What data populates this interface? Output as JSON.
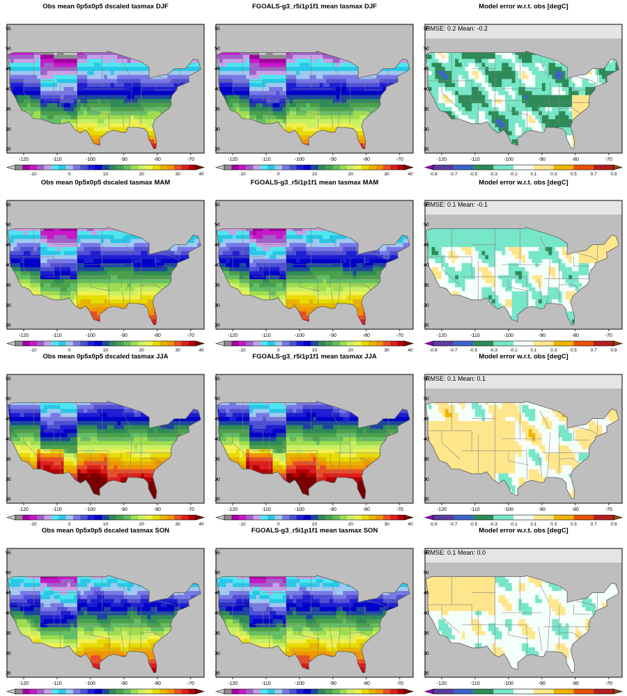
{
  "rows": [
    {
      "season": "DJF",
      "obs_title": "Obs mean 0p5x0p5 dscaled tasmax DJF",
      "model_title": "FGOALS-g3_r5i1p1f1 mean tasmax DJF",
      "err_title": "Model error w.r.t. obs [degC]",
      "err_stats": "RMSE: 0.2  Mean: -0.2"
    },
    {
      "season": "MAM",
      "obs_title": "Obs mean 0p5x0p5 dscaled tasmax MAM",
      "model_title": "FGOALS-g3_r5i1p1f1 mean tasmax MAM",
      "err_title": "Model error w.r.t. obs [degC]",
      "err_stats": "RMSE: 0.1  Mean: -0.1"
    },
    {
      "season": "JJA",
      "obs_title": "Obs mean 0p5x0p5 dscaled tasmax JJA",
      "model_title": "FGOALS-g3_r5i1p1f1 mean tasmax JJA",
      "err_title": "Model error w.r.t. obs [degC]",
      "err_stats": "RMSE: 0.1  Mean: 0.1"
    },
    {
      "season": "SON",
      "obs_title": "Obs mean 0p5x0p5 dscaled tasmax SON",
      "model_title": "FGOALS-g3_r5i1p1f1 mean tasmax SON",
      "err_title": "Model error w.r.t. obs [degC]",
      "err_stats": "RMSE: 0.1  Mean: 0.0"
    }
  ],
  "axes": {
    "lon_ticks": [
      "-120",
      "-110",
      "-100",
      "-90",
      "-80",
      "-70"
    ],
    "lat_ticks": [
      "55",
      "50",
      "45",
      "40",
      "35",
      "30",
      "25"
    ]
  },
  "temp_colorbar": {
    "labels": [
      "-10",
      "0",
      "10",
      "20",
      "30",
      "40"
    ],
    "colors": [
      "#c8c8c8",
      "#8c8c8c",
      "#a000a0",
      "#c818c8",
      "#a060c8",
      "#c8a0e6",
      "#50e6f0",
      "#28c8e6",
      "#a0c8f0",
      "#7878e6",
      "#5050d2",
      "#1e1ed2",
      "#0000c8",
      "#1e46a0",
      "#2e8b57",
      "#4ca04c",
      "#64be64",
      "#a0dc50",
      "#c8f064",
      "#f0f050",
      "#e6dc00",
      "#e6b400",
      "#f09600",
      "#e65028",
      "#dc1e1e",
      "#b40000",
      "#780000"
    ]
  },
  "err_colorbar": {
    "labels": [
      "-0.9",
      "-0.7",
      "-0.5",
      "-0.3",
      "-0.1",
      "0.1",
      "0.3",
      "0.5",
      "0.7",
      "0.9"
    ],
    "colors": [
      "#9600b4",
      "#5a3ca0",
      "#3c64c8",
      "#2e8b57",
      "#78e6c8",
      "#f5fffa",
      "#ffe68c",
      "#f0b400",
      "#e65000",
      "#b41e1e",
      "#8c460a"
    ]
  },
  "colors": {
    "missing": "#bebebe",
    "frame": "#000000",
    "state_lines": "#808080",
    "ocean": "#ffffff"
  }
}
